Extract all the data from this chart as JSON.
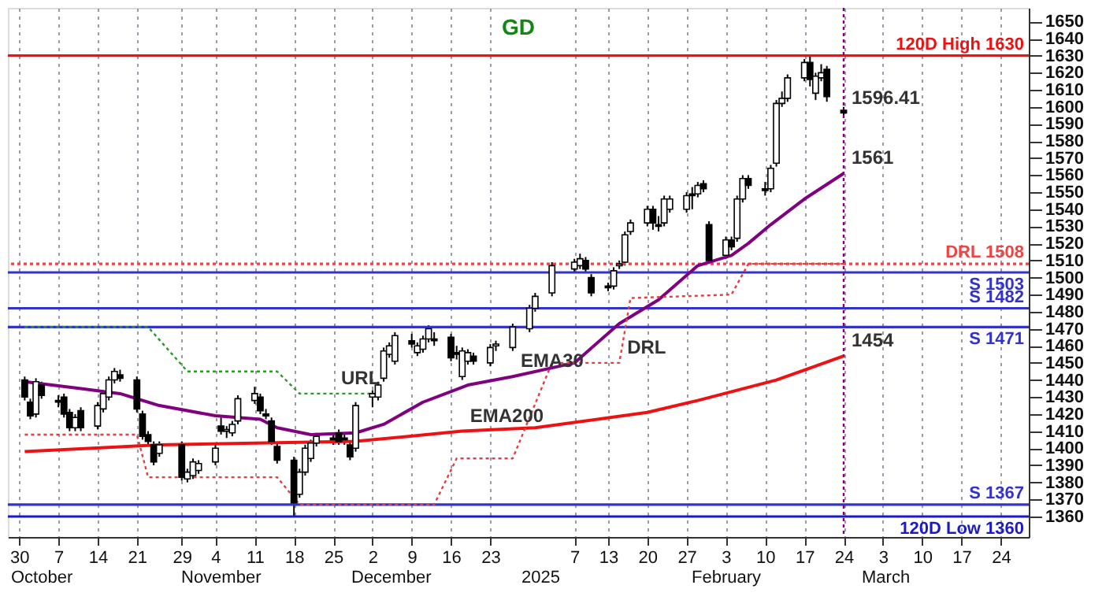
{
  "chart_data": {
    "type": "candlestick",
    "x": [
      "2024-10-01",
      "2024-10-02",
      "2024-10-03",
      "2024-10-04",
      "2024-10-07",
      "2024-10-08",
      "2024-10-09",
      "2024-10-10",
      "2024-10-11",
      "2024-10-14",
      "2024-10-15",
      "2024-10-16",
      "2024-10-17",
      "2024-10-18",
      "2024-10-21",
      "2024-10-22",
      "2024-10-23",
      "2024-10-24",
      "2024-10-25",
      "2024-10-29",
      "2024-10-30",
      "2024-10-31",
      "2024-11-01",
      "2024-11-04",
      "2024-11-05",
      "2024-11-06",
      "2024-11-07",
      "2024-11-08",
      "2024-11-11",
      "2024-11-12",
      "2024-11-13",
      "2024-11-14",
      "2024-11-15",
      "2024-11-18",
      "2024-11-19",
      "2024-11-20",
      "2024-11-21",
      "2024-11-22",
      "2024-11-25",
      "2024-11-26",
      "2024-11-27",
      "2024-11-28",
      "2024-11-29",
      "2024-12-02",
      "2024-12-03",
      "2024-12-04",
      "2024-12-05",
      "2024-12-06",
      "2024-12-09",
      "2024-12-10",
      "2024-12-11",
      "2024-12-12",
      "2024-12-13",
      "2024-12-16",
      "2024-12-17",
      "2024-12-18",
      "2024-12-19",
      "2024-12-20",
      "2024-12-23",
      "2024-12-24",
      "2024-12-27",
      "2024-12-30",
      "2024-12-31",
      "2025-01-03",
      "2025-01-07",
      "2025-01-08",
      "2025-01-09",
      "2025-01-10",
      "2025-01-13",
      "2025-01-14",
      "2025-01-15",
      "2025-01-16",
      "2025-01-17",
      "2025-01-20",
      "2025-01-21",
      "2025-01-22",
      "2025-01-23",
      "2025-01-24",
      "2025-01-27",
      "2025-01-28",
      "2025-01-29",
      "2025-01-30",
      "2025-01-31",
      "2025-02-03",
      "2025-02-04",
      "2025-02-05",
      "2025-02-06",
      "2025-02-07",
      "2025-02-10",
      "2025-02-11",
      "2025-02-12",
      "2025-02-13",
      "2025-02-14",
      "2025-02-17",
      "2025-02-18",
      "2025-02-19",
      "2025-02-20",
      "2025-02-21",
      "2025-02-24"
    ],
    "ohlc": [
      [
        1440,
        1442,
        1428,
        1430
      ],
      [
        1427,
        1429,
        1417,
        1419
      ],
      [
        1420,
        1441,
        1418,
        1439
      ],
      [
        1437,
        1439,
        1429,
        1431
      ],
      [
        1428,
        1431,
        1424,
        1427
      ],
      [
        1430,
        1432,
        1418,
        1420
      ],
      [
        1421,
        1423,
        1410,
        1412
      ],
      [
        1412,
        1420,
        1410,
        1418
      ],
      [
        1422,
        1424,
        1410,
        1412
      ],
      [
        1413,
        1427,
        1411,
        1425
      ],
      [
        1423,
        1434,
        1421,
        1432
      ],
      [
        1430,
        1442,
        1428,
        1440
      ],
      [
        1440,
        1447,
        1438,
        1445
      ],
      [
        1443,
        1446,
        1439,
        1441
      ],
      [
        1440,
        1442,
        1421,
        1423
      ],
      [
        1420,
        1422,
        1405,
        1407
      ],
      [
        1408,
        1410,
        1402,
        1404
      ],
      [
        1402,
        1404,
        1390,
        1392
      ],
      [
        1397,
        1404,
        1395,
        1402
      ],
      [
        1402,
        1404,
        1381,
        1383
      ],
      [
        1382,
        1388,
        1380,
        1386
      ],
      [
        1384,
        1394,
        1382,
        1392
      ],
      [
        1387,
        1393,
        1385,
        1391
      ],
      [
        1392,
        1402,
        1390,
        1400
      ],
      [
        1413,
        1418,
        1408,
        1410
      ],
      [
        1410,
        1413,
        1406,
        1411
      ],
      [
        1409,
        1416,
        1407,
        1414
      ],
      [
        1416,
        1431,
        1414,
        1429
      ],
      [
        1428,
        1436,
        1426,
        1432
      ],
      [
        1430,
        1432,
        1420,
        1422
      ],
      [
        1420,
        1423,
        1417,
        1419
      ],
      [
        1416,
        1418,
        1402,
        1404
      ],
      [
        1401,
        1403,
        1391,
        1393
      ],
      [
        1393,
        1395,
        1360,
        1368
      ],
      [
        1373,
        1388,
        1371,
        1386
      ],
      [
        1386,
        1402,
        1384,
        1400
      ],
      [
        1394,
        1405,
        1392,
        1403
      ],
      [
        1403,
        1409,
        1401,
        1407
      ],
      [
        1406,
        1409,
        1402,
        1405
      ],
      [
        1409,
        1411,
        1402,
        1404
      ],
      [
        1406,
        1409,
        1402,
        1405
      ],
      [
        1402,
        1404,
        1393,
        1395
      ],
      [
        1400,
        1427,
        1398,
        1425
      ],
      [
        1430,
        1434,
        1424,
        1432
      ],
      [
        1430,
        1439,
        1428,
        1437
      ],
      [
        1441,
        1459,
        1439,
        1457
      ],
      [
        1455,
        1462,
        1453,
        1460
      ],
      [
        1451,
        1468,
        1449,
        1466
      ],
      [
        1463,
        1467,
        1459,
        1461
      ],
      [
        1456,
        1462,
        1454,
        1460
      ],
      [
        1458,
        1466,
        1456,
        1464
      ],
      [
        1464,
        1472,
        1462,
        1470
      ],
      [
        1464,
        1468,
        1460,
        1463
      ],
      [
        1465,
        1467,
        1451,
        1453
      ],
      [
        1456,
        1460,
        1452,
        1455
      ],
      [
        1442,
        1459,
        1440,
        1457
      ],
      [
        1451,
        1458,
        1449,
        1456
      ],
      [
        1454,
        1456,
        1449,
        1451
      ],
      [
        1450,
        1461,
        1448,
        1459
      ],
      [
        1460,
        1463,
        1457,
        1461
      ],
      [
        1459,
        1473,
        1457,
        1471
      ],
      [
        1470,
        1484,
        1468,
        1482
      ],
      [
        1482,
        1491,
        1480,
        1489
      ],
      [
        1491,
        1509,
        1489,
        1507
      ],
      [
        1505,
        1511,
        1503,
        1509
      ],
      [
        1507,
        1514,
        1505,
        1511
      ],
      [
        1510,
        1512,
        1503,
        1505
      ],
      [
        1500,
        1502,
        1489,
        1491
      ],
      [
        1495,
        1497,
        1492,
        1494
      ],
      [
        1495,
        1506,
        1493,
        1504
      ],
      [
        1507,
        1510,
        1505,
        1508
      ],
      [
        1509,
        1527,
        1507,
        1525
      ],
      [
        1527,
        1534,
        1525,
        1532
      ],
      [
        1532,
        1542,
        1530,
        1540
      ],
      [
        1540,
        1542,
        1528,
        1532
      ],
      [
        1531,
        1536,
        1527,
        1530
      ],
      [
        1532,
        1548,
        1530,
        1546
      ],
      [
        1540,
        1548,
        1538,
        1546
      ],
      [
        1540,
        1550,
        1538,
        1548
      ],
      [
        1549,
        1553,
        1540,
        1548
      ],
      [
        1549,
        1556,
        1547,
        1554
      ],
      [
        1555,
        1557,
        1550,
        1552
      ],
      [
        1531,
        1533,
        1508,
        1510
      ],
      [
        1513,
        1524,
        1511,
        1522
      ],
      [
        1522,
        1524,
        1516,
        1518
      ],
      [
        1523,
        1548,
        1521,
        1546
      ],
      [
        1546,
        1560,
        1544,
        1558
      ],
      [
        1558,
        1560,
        1552,
        1554
      ],
      [
        1552,
        1556,
        1548,
        1551
      ],
      [
        1552,
        1566,
        1550,
        1564
      ],
      [
        1567,
        1604,
        1565,
        1602
      ],
      [
        1602,
        1609,
        1600,
        1605
      ],
      [
        1605,
        1619,
        1603,
        1617
      ],
      [
        1617,
        1628,
        1615,
        1626
      ],
      [
        1626,
        1630,
        1612,
        1616
      ],
      [
        1608,
        1620,
        1604,
        1618
      ],
      [
        1617,
        1625,
        1615,
        1620
      ],
      [
        1622,
        1624,
        1603,
        1606
      ],
      [
        1598,
        1600,
        1594,
        1596.41
      ]
    ],
    "series": [
      {
        "type": "line",
        "color": "#800080",
        "line_style": "solid",
        "x": [
          "2024-10-01",
          "2024-10-11",
          "2024-10-18",
          "2024-10-25",
          "2024-11-04",
          "2024-11-12",
          "2024-11-15",
          "2024-11-21",
          "2024-11-29",
          "2024-12-04",
          "2024-12-11",
          "2024-12-19",
          "2024-12-27",
          "2025-01-07",
          "2025-01-15",
          "2025-01-22",
          "2025-01-29",
          "2025-02-04",
          "2025-02-07",
          "2025-02-11",
          "2025-02-17",
          "2025-02-24"
        ],
        "values": [
          1439,
          1435,
          1432,
          1425,
          1419,
          1417,
          1412,
          1408,
          1409,
          1414,
          1427,
          1437,
          1442,
          1450,
          1473,
          1487,
          1507,
          1513,
          1520,
          1531,
          1546,
          1561
        ]
      },
      {
        "type": "line",
        "color": "#ee1111",
        "line_style": "solid",
        "x": [
          "2024-10-01",
          "2024-10-25",
          "2024-11-29",
          "2024-12-18",
          "2024-12-31",
          "2025-01-20",
          "2025-01-29",
          "2025-02-12",
          "2025-02-24"
        ],
        "values": [
          1398,
          1402,
          1404,
          1410,
          1412,
          1421,
          1428,
          1440,
          1454
        ]
      },
      {
        "type": "line",
        "color": "#2a9a2a",
        "line_style": "dotted",
        "x": [
          "2024-10-01",
          "2024-10-23",
          "2024-10-30",
          "2024-11-15",
          "2024-11-19",
          "2024-12-03"
        ],
        "values": [
          1471,
          1471,
          1445,
          1445,
          1432,
          1432
        ]
      },
      {
        "type": "line",
        "color": "#e04040",
        "line_style": "dotted",
        "x": [
          "2024-10-01",
          "2024-10-21",
          "2024-10-23",
          "2024-11-15",
          "2024-11-19",
          "2024-12-13",
          "2024-12-17",
          "2024-12-27",
          "2025-01-03",
          "2025-01-15",
          "2025-01-17",
          "2025-02-04",
          "2025-02-07",
          "2025-02-24"
        ],
        "values": [
          1408,
          1408,
          1383,
          1383,
          1367,
          1367,
          1394,
          1394,
          1450,
          1450,
          1488,
          1490,
          1508,
          1508
        ]
      }
    ],
    "xlim": [
      "2024-09-28",
      "2025-03-29"
    ],
    "xticks": [
      {
        "value": "2024-09-30",
        "label": "30"
      },
      {
        "value": "2024-10-07",
        "label": "7"
      },
      {
        "value": "2024-10-14",
        "label": "14"
      },
      {
        "value": "2024-10-21",
        "label": "21"
      },
      {
        "value": "2024-10-29",
        "label": "29"
      },
      {
        "value": "2024-11-04",
        "label": "4"
      },
      {
        "value": "2024-11-11",
        "label": "11"
      },
      {
        "value": "2024-11-18",
        "label": "18"
      },
      {
        "value": "2024-11-25",
        "label": "25"
      },
      {
        "value": "2024-12-02",
        "label": "2"
      },
      {
        "value": "2024-12-09",
        "label": "9"
      },
      {
        "value": "2024-12-16",
        "label": "16"
      },
      {
        "value": "2024-12-23",
        "label": "23"
      },
      {
        "value": "2025-01-07",
        "label": "7"
      },
      {
        "value": "2025-01-13",
        "label": "13"
      },
      {
        "value": "2025-01-20",
        "label": "20"
      },
      {
        "value": "2025-01-27",
        "label": "27"
      },
      {
        "value": "2025-02-03",
        "label": "3"
      },
      {
        "value": "2025-02-10",
        "label": "10"
      },
      {
        "value": "2025-02-17",
        "label": "17"
      },
      {
        "value": "2025-02-24",
        "label": "24"
      },
      {
        "value": "2025-03-03",
        "label": "3"
      },
      {
        "value": "2025-03-10",
        "label": "10"
      },
      {
        "value": "2025-03-17",
        "label": "17"
      },
      {
        "value": "2025-03-24",
        "label": "24"
      }
    ],
    "ylim": [
      1348,
      1658
    ],
    "yticks": [
      1360,
      1370,
      1380,
      1390,
      1400,
      1410,
      1420,
      1430,
      1440,
      1450,
      1460,
      1470,
      1480,
      1490,
      1500,
      1510,
      1520,
      1530,
      1540,
      1550,
      1560,
      1570,
      1580,
      1590,
      1600,
      1610,
      1620,
      1630,
      1640,
      1650
    ],
    "grid": "x",
    "ref_lines": [
      {
        "axis": "y",
        "value": 1630,
        "label": "120D High 1630",
        "color": "#ee1111",
        "line_style": "solid"
      },
      {
        "axis": "y",
        "value": 1508,
        "label": "DRL 1508",
        "color": "#ee4444",
        "line_style": "dotted"
      },
      {
        "axis": "y",
        "value": 1503,
        "label": "S 1503",
        "color": "#3333cc",
        "line_style": "solid"
      },
      {
        "axis": "y",
        "value": 1482,
        "label": "S 1482",
        "color": "#3333cc",
        "line_style": "solid"
      },
      {
        "axis": "y",
        "value": 1471,
        "label": "S 1471",
        "color": "#3333cc",
        "line_style": "solid"
      },
      {
        "axis": "y",
        "value": 1367,
        "label": "S 1367",
        "color": "#3333cc",
        "line_style": "solid"
      },
      {
        "axis": "y",
        "value": 1360,
        "label": "120D Low 1360",
        "color": "#1a1acc",
        "line_style": "solid"
      },
      {
        "axis": "x",
        "value": "2025-02-24",
        "color": "#800080",
        "line_style": "dotted"
      }
    ],
    "annotations": [
      "GD",
      {
        "text": "URL",
        "x": "2024-11-25",
        "y": 1432
      },
      {
        "text": "EMA30",
        "x": "2024-12-27",
        "y": 1442
      },
      {
        "text": "DRL",
        "x": "2025-01-15",
        "y": 1450
      },
      {
        "text": "EMA200",
        "x": "2024-12-18",
        "y": 1410
      },
      {
        "text": "1561",
        "x": "2025-02-24",
        "y": 1561
      },
      {
        "text": "1454",
        "x": "2025-02-24",
        "y": 1454
      },
      {
        "text": "1596.41",
        "x": "2025-02-24",
        "y": 1596.41
      },
      "October",
      "November",
      "December",
      "2025",
      "February",
      "March"
    ]
  }
}
